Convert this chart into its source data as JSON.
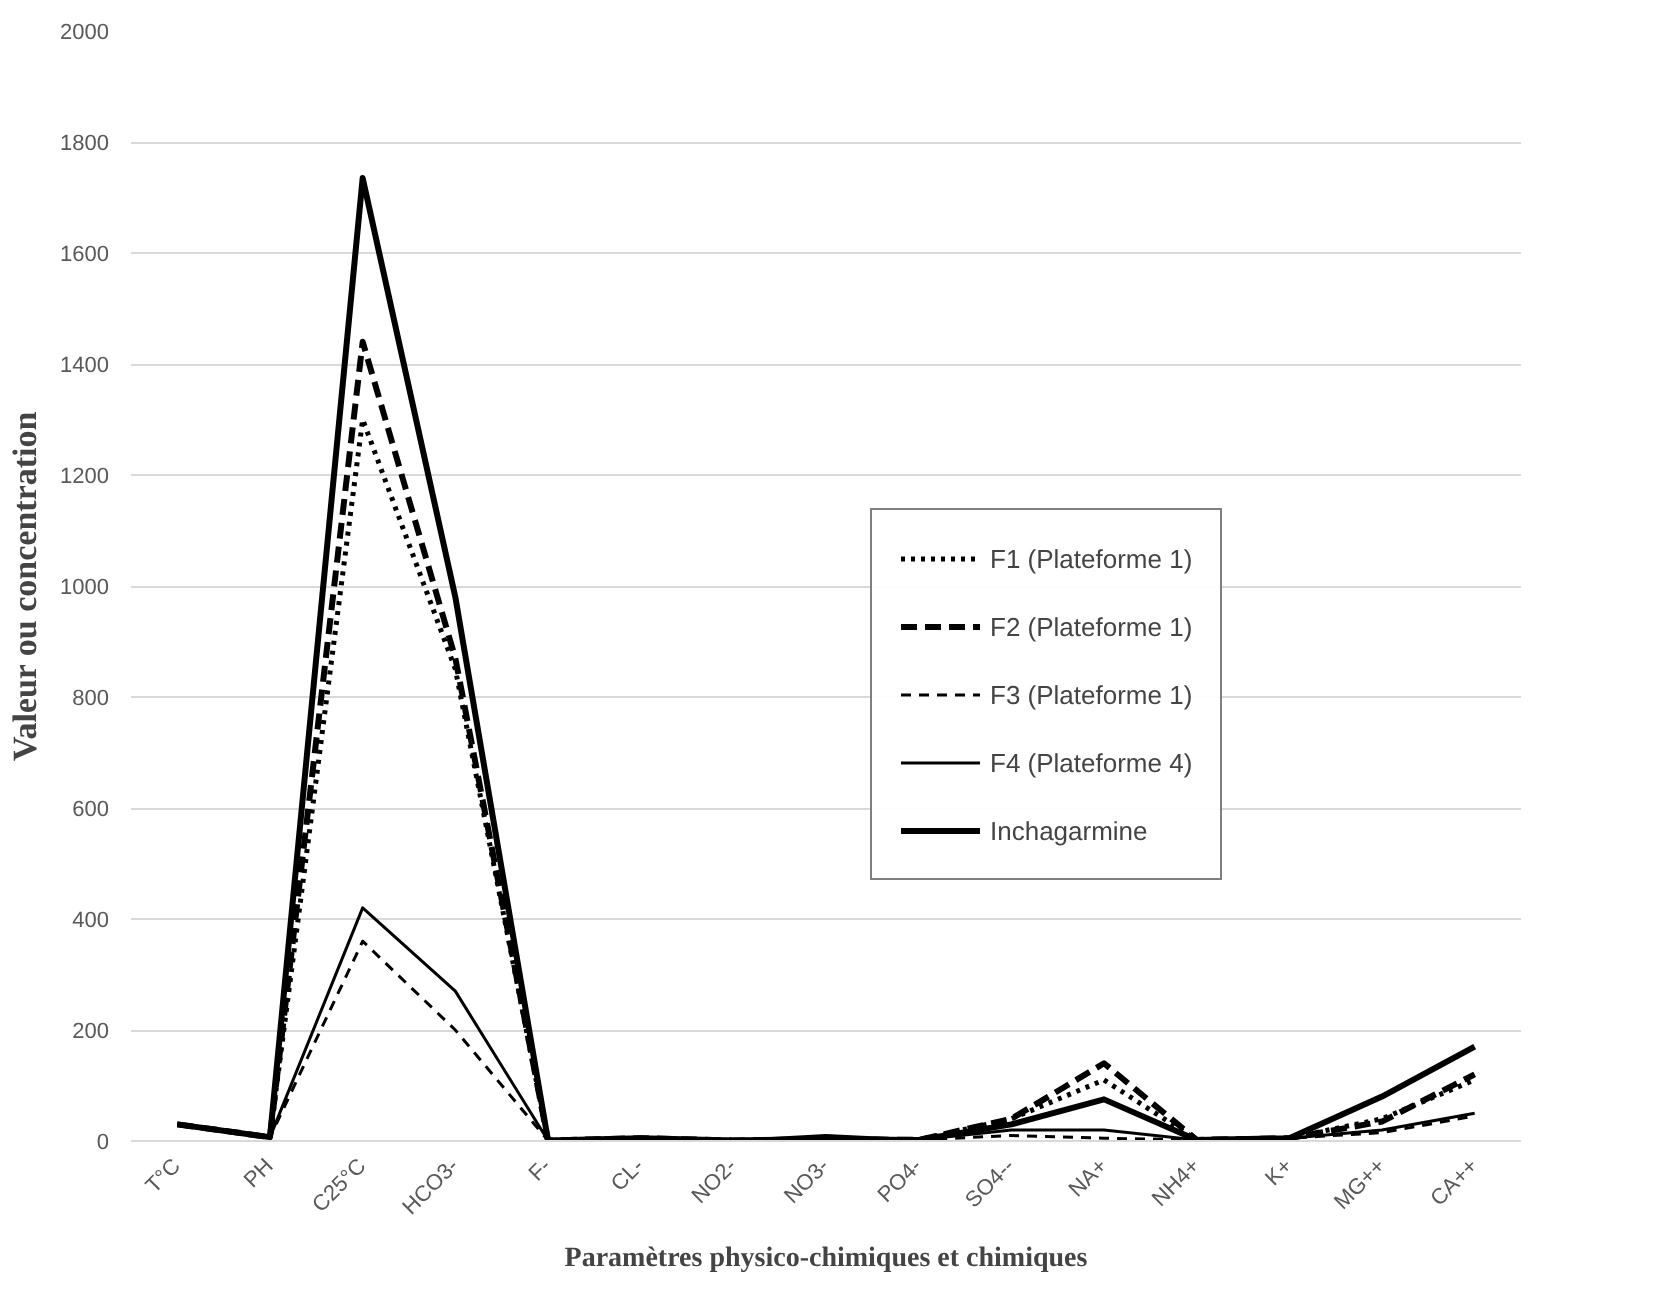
{
  "chart_data": {
    "type": "line",
    "xlabel": "Paramètres physico-chimiques et chimiques",
    "ylabel": "Valeur ou concentration",
    "categories": [
      "T°C",
      "PH",
      "C25°C",
      "HCO3-",
      "F-",
      "CL-",
      "NO2-",
      "NO3-",
      "PO4-",
      "SO4--",
      "NA+",
      "NH4+",
      "K+",
      "MG++",
      "CA++"
    ],
    "ylim": [
      0,
      2000
    ],
    "yticks": [
      0,
      200,
      400,
      600,
      800,
      1000,
      1200,
      1400,
      1600,
      1800,
      2000
    ],
    "grid": "y",
    "legend": "right",
    "marker": "none",
    "series": [
      {
        "name": "F1 (Plateforme 1)",
        "color": "#000000",
        "line_style": "dotted",
        "values": [
          30,
          7,
          1300,
          850,
          1,
          5,
          1,
          3,
          2,
          40,
          110,
          2,
          5,
          40,
          110
        ]
      },
      {
        "name": "F2 (Plateforme 1)",
        "color": "#000000",
        "line_style": "dashed",
        "values": [
          30,
          7,
          1440,
          870,
          1,
          5,
          1,
          3,
          2,
          40,
          140,
          2,
          5,
          35,
          120
        ]
      },
      {
        "name": "F3 (Plateforme 1)",
        "color": "#000000",
        "line_style": "dashed",
        "values": [
          30,
          7,
          360,
          200,
          1,
          5,
          1,
          3,
          2,
          10,
          5,
          2,
          5,
          15,
          45
        ]
      },
      {
        "name": "F4 (Plateforme 4)",
        "color": "#000000",
        "line_style": "solid",
        "values": [
          30,
          7,
          420,
          270,
          1,
          5,
          1,
          10,
          2,
          20,
          20,
          2,
          5,
          20,
          50
        ]
      },
      {
        "name": "Inchagarmine",
        "color": "#000000",
        "line_style": "solid",
        "values": [
          30,
          7,
          1735,
          980,
          1,
          5,
          1,
          3,
          2,
          30,
          75,
          2,
          5,
          80,
          170
        ]
      }
    ]
  }
}
